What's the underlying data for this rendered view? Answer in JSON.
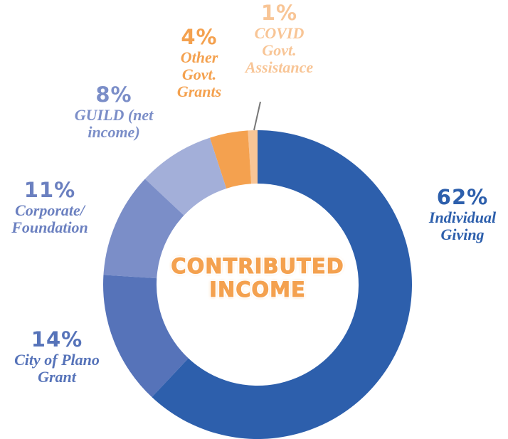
{
  "chart_data": {
    "type": "donut",
    "center_label": "CONTRIBUTED INCOME",
    "categories": [
      "Individual Giving",
      "City of Plano Grant",
      "Corporate/ Foundation",
      "GUILD (net income)",
      "Other Govt. Grants",
      "COVID Govt. Assistance"
    ],
    "values": [
      62,
      14,
      11,
      8,
      4,
      1
    ],
    "value_labels": [
      "62%",
      "14%",
      "11%",
      "8%",
      "4%",
      "1%"
    ],
    "colors": [
      "#2d5fac",
      "#5673b9",
      "#7b8ec8",
      "#a3afd9",
      "#f4a14f",
      "#f8c596"
    ]
  }
}
